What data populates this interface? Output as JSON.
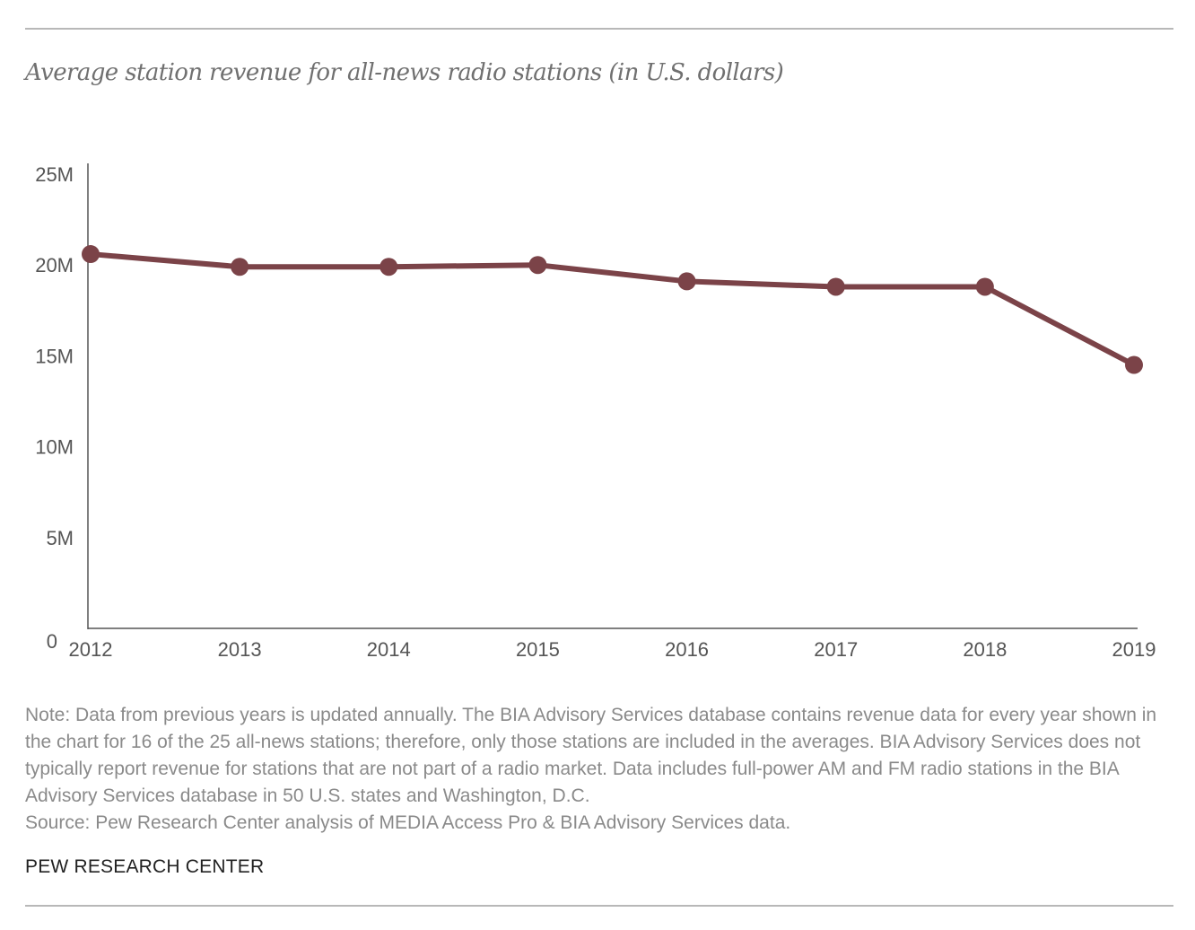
{
  "chart_data": {
    "type": "line",
    "title": "Average station revenue for all-news radio stations (in U.S. dollars)",
    "x": [
      "2012",
      "2013",
      "2014",
      "2015",
      "2016",
      "2017",
      "2018",
      "2019"
    ],
    "series": [
      {
        "values": [
          20.6,
          19.9,
          19.9,
          20.0,
          19.1,
          18.8,
          18.8,
          14.5
        ]
      }
    ],
    "y_unit": "M",
    "ylim": [
      0,
      25
    ],
    "yticks": [
      0,
      5,
      10,
      15,
      20,
      25
    ],
    "ytick_labels": [
      "0",
      "5M",
      "10M",
      "15M",
      "20M",
      "25M"
    ],
    "grid": false,
    "legend": "none",
    "line_color": "#7b4348"
  },
  "footer": {
    "note": "Note: Data from previous years is updated annually. The BIA Advisory Services database contains revenue data for every year shown in the chart for 16 of the 25 all-news stations; therefore, only those stations are included in the averages. BIA Advisory Services does not typically report revenue for stations that are not part of a radio market. Data includes full-power AM and FM radio stations in the BIA Advisory Services database in 50 U.S. states and Washington, D.C.",
    "source": "Source: Pew Research Center analysis of MEDIA Access Pro & BIA Advisory Services data.",
    "brand": "PEW RESEARCH CENTER"
  }
}
